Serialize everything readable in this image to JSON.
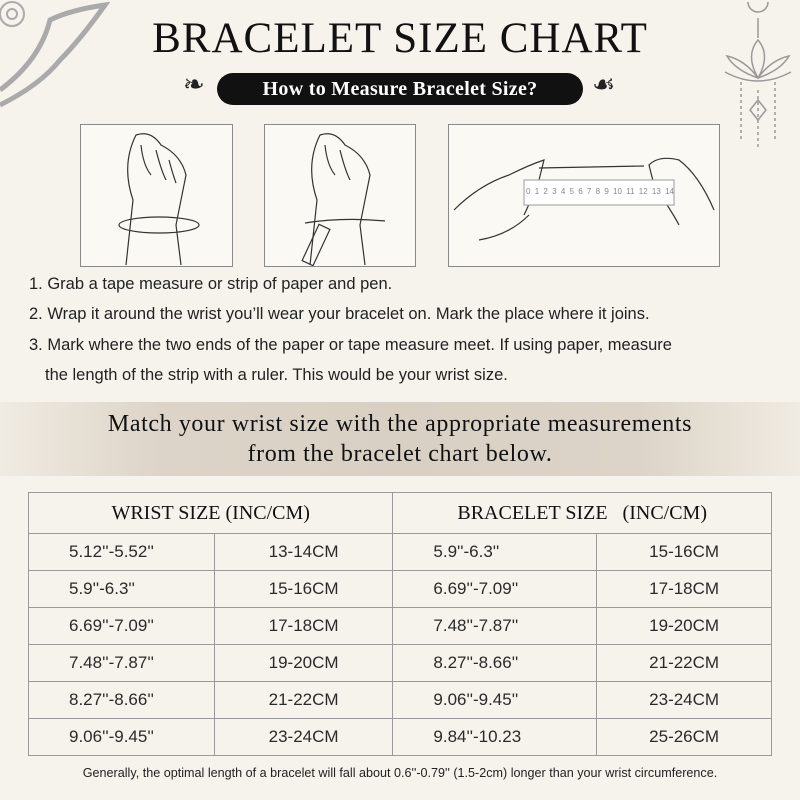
{
  "title": "BRACELET SIZE CHART",
  "subtitle": "How to Measure Bracelet Size?",
  "ruler_labels": [
    "0",
    "1",
    "2",
    "3",
    "4",
    "5",
    "6",
    "7",
    "8",
    "9",
    "10",
    "11",
    "12",
    "13",
    "14"
  ],
  "steps": [
    "1. Grab a tape measure or strip of paper and pen.",
    "2. Wrap it around the wrist you’ll wear your bracelet on. Mark the place where it joins.",
    "3. Mark where the two ends of the paper or tape measure meet. If using paper, measure",
    "the length of the strip with a ruler. This would be your wrist size."
  ],
  "band": {
    "line1": "Match your wrist size with the appropriate measurements",
    "line2": "from the bracelet chart below."
  },
  "table": {
    "headers": [
      "WRIST SIZE (INC/CM)",
      "BRACELET SIZE   (INC/CM)"
    ],
    "rows": [
      [
        "5.12''-5.52''",
        "13-14CM",
        "5.9''-6.3''",
        "15-16CM"
      ],
      [
        "5.9''-6.3''",
        "15-16CM",
        "6.69''-7.09''",
        "17-18CM"
      ],
      [
        "6.69''-7.09''",
        "17-18CM",
        "7.48''-7.87''",
        "19-20CM"
      ],
      [
        "7.48''-7.87''",
        "19-20CM",
        "8.27''-8.66''",
        "21-22CM"
      ],
      [
        "8.27''-8.66''",
        "21-22CM",
        "9.06''-9.45''",
        "23-24CM"
      ],
      [
        "9.06''-9.45''",
        "23-24CM",
        "9.84''-10.23",
        "25-26CM"
      ]
    ]
  },
  "footer": "Generally, the optimal length of a bracelet will fall about 0.6''-0.79'' (1.5-2cm) longer than your wrist circumference."
}
